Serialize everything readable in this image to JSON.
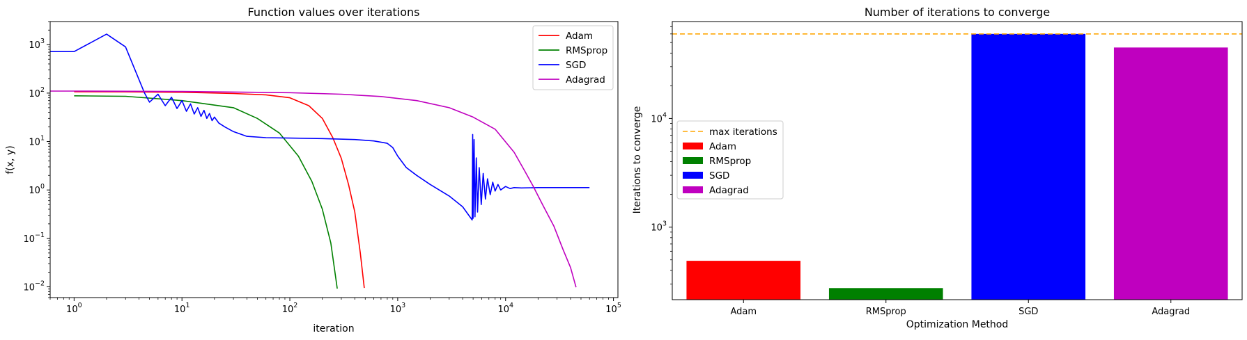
{
  "chart_data": [
    {
      "type": "line",
      "title": "Function values over iterations",
      "xlabel": "iteration",
      "ylabel": "f(x, y)",
      "xscale": "log",
      "yscale": "log",
      "xlim": [
        0.6,
        110000
      ],
      "ylim": [
        0.006,
        3000
      ],
      "xticks": [
        {
          "value": 1,
          "base": "10",
          "exp": "0"
        },
        {
          "value": 10,
          "base": "10",
          "exp": "1"
        },
        {
          "value": 100,
          "base": "10",
          "exp": "2"
        },
        {
          "value": 1000,
          "base": "10",
          "exp": "3"
        },
        {
          "value": 10000,
          "base": "10",
          "exp": "4"
        },
        {
          "value": 100000,
          "base": "10",
          "exp": "5"
        }
      ],
      "yticks": [
        {
          "value": 0.01,
          "base": "10",
          "exp": "−2"
        },
        {
          "value": 0.1,
          "base": "10",
          "exp": "−1"
        },
        {
          "value": 1,
          "base": "10",
          "exp": "0"
        },
        {
          "value": 10,
          "base": "10",
          "exp": "1"
        },
        {
          "value": 100,
          "base": "10",
          "exp": "2"
        },
        {
          "value": 1000,
          "base": "10",
          "exp": "3"
        }
      ],
      "legend": {
        "location": "top-right"
      },
      "series": [
        {
          "name": "Adam",
          "color": "#ff0000",
          "points": [
            [
              1,
              107
            ],
            [
              3,
              106
            ],
            [
              10,
              104
            ],
            [
              30,
              98
            ],
            [
              60,
              92
            ],
            [
              100,
              80
            ],
            [
              150,
              55
            ],
            [
              200,
              30
            ],
            [
              250,
              12
            ],
            [
              300,
              4.5
            ],
            [
              350,
              1.3
            ],
            [
              400,
              0.35
            ],
            [
              450,
              0.05
            ],
            [
              490,
              0.0095
            ]
          ]
        },
        {
          "name": "RMSprop",
          "color": "#008000",
          "points": [
            [
              1,
              88
            ],
            [
              3,
              86
            ],
            [
              10,
              70
            ],
            [
              30,
              50
            ],
            [
              50,
              30
            ],
            [
              80,
              15
            ],
            [
              120,
              5
            ],
            [
              160,
              1.5
            ],
            [
              200,
              0.4
            ],
            [
              240,
              0.08
            ],
            [
              275,
              0.0092
            ]
          ]
        },
        {
          "name": "SGD",
          "color": "#0000ff",
          "points": [
            [
              0.6,
              720
            ],
            [
              1,
              720
            ],
            [
              2,
              1650
            ],
            [
              3,
              900
            ],
            [
              4.5,
              100
            ],
            [
              5,
              65
            ],
            [
              6,
              95
            ],
            [
              7,
              55
            ],
            [
              8,
              82
            ],
            [
              9,
              48
            ],
            [
              10,
              70
            ],
            [
              11,
              42
            ],
            [
              12,
              60
            ],
            [
              13,
              37
            ],
            [
              14,
              50
            ],
            [
              15,
              33
            ],
            [
              16,
              44
            ],
            [
              17,
              30
            ],
            [
              18,
              38
            ],
            [
              19,
              27
            ],
            [
              20,
              32
            ],
            [
              22,
              24
            ],
            [
              25,
              20
            ],
            [
              30,
              16
            ],
            [
              40,
              12.8
            ],
            [
              60,
              12
            ],
            [
              100,
              11.8
            ],
            [
              200,
              11.5
            ],
            [
              400,
              11
            ],
            [
              600,
              10.3
            ],
            [
              800,
              9.2
            ],
            [
              900,
              7.5
            ],
            [
              1000,
              5
            ],
            [
              1200,
              2.9
            ],
            [
              1500,
              2
            ],
            [
              2000,
              1.3
            ],
            [
              3000,
              0.75
            ],
            [
              4000,
              0.45
            ],
            [
              4900,
              0.24
            ],
            [
              4950,
              14
            ],
            [
              5000,
              0.26
            ],
            [
              5100,
              11
            ],
            [
              5200,
              0.28
            ],
            [
              5350,
              4.6
            ],
            [
              5500,
              0.35
            ],
            [
              5700,
              2.9
            ],
            [
              5950,
              0.5
            ],
            [
              6200,
              2.2
            ],
            [
              6500,
              0.65
            ],
            [
              6800,
              1.7
            ],
            [
              7200,
              0.8
            ],
            [
              7600,
              1.45
            ],
            [
              8000,
              0.95
            ],
            [
              8500,
              1.3
            ],
            [
              9000,
              1.0
            ],
            [
              10000,
              1.18
            ],
            [
              11000,
              1.07
            ],
            [
              12000,
              1.12
            ],
            [
              14000,
              1.1
            ],
            [
              20000,
              1.12
            ],
            [
              40000,
              1.12
            ],
            [
              60000,
              1.12
            ]
          ]
        },
        {
          "name": "Adagrad",
          "color": "#bf00bf",
          "points": [
            [
              0.6,
              110
            ],
            [
              1,
              110
            ],
            [
              10,
              108
            ],
            [
              100,
              102
            ],
            [
              300,
              95
            ],
            [
              700,
              85
            ],
            [
              1500,
              70
            ],
            [
              3000,
              50
            ],
            [
              5000,
              32
            ],
            [
              8000,
              18
            ],
            [
              12000,
              6
            ],
            [
              15000,
              2.5
            ],
            [
              18000,
              1.2
            ],
            [
              22000,
              0.5
            ],
            [
              28000,
              0.18
            ],
            [
              34000,
              0.06
            ],
            [
              40000,
              0.025
            ],
            [
              45000,
              0.0098
            ]
          ]
        }
      ]
    },
    {
      "type": "bar",
      "title": "Number of iterations to converge",
      "xlabel": "Optimization Method",
      "ylabel": "Iterations to converge",
      "yscale": "log",
      "ylim": [
        215,
        78000
      ],
      "categories": [
        "Adam",
        "RMSprop",
        "SGD",
        "Adagrad"
      ],
      "values": [
        490,
        275,
        60000,
        45000
      ],
      "colors": [
        "#ff0000",
        "#008000",
        "#0000ff",
        "#bf00bf"
      ],
      "yticks": [
        {
          "value": 1000,
          "base": "10",
          "exp": "3"
        },
        {
          "value": 10000,
          "base": "10",
          "exp": "4"
        }
      ],
      "reference_line": {
        "label": "max iterations",
        "value": 60000,
        "color": "#ffa500"
      },
      "legend": {
        "location": "center-left",
        "entries": [
          "max iterations",
          "Adam",
          "RMSprop",
          "SGD",
          "Adagrad"
        ]
      }
    }
  ]
}
